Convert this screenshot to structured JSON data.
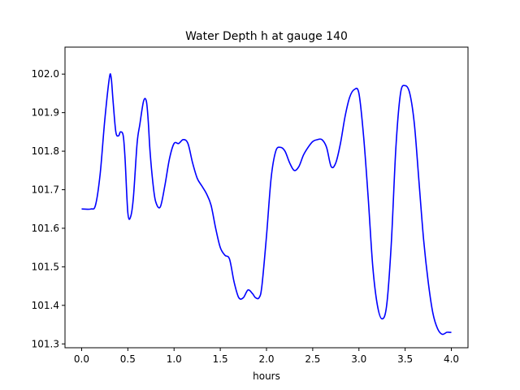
{
  "chart_data": {
    "type": "line",
    "title": "Water Depth h at gauge 140",
    "xlabel": "hours",
    "ylabel": "",
    "xlim": [
      -0.18,
      4.18
    ],
    "ylim": [
      101.29,
      102.07
    ],
    "xticks": [
      0.0,
      0.5,
      1.0,
      1.5,
      2.0,
      2.5,
      3.0,
      3.5,
      4.0
    ],
    "xtick_labels": [
      "0.0",
      "0.5",
      "1.0",
      "1.5",
      "2.0",
      "2.5",
      "3.0",
      "3.5",
      "4.0"
    ],
    "yticks": [
      101.3,
      101.4,
      101.5,
      101.6,
      101.7,
      101.8,
      101.9,
      102.0
    ],
    "ytick_labels": [
      "101.3",
      "101.4",
      "101.5",
      "101.6",
      "101.7",
      "101.8",
      "101.9",
      "102.0"
    ],
    "grid": false,
    "series": [
      {
        "name": "",
        "color": "#0000ff",
        "x": [
          0.0,
          0.1,
          0.15,
          0.2,
          0.25,
          0.3,
          0.32,
          0.34,
          0.37,
          0.4,
          0.42,
          0.45,
          0.47,
          0.5,
          0.53,
          0.56,
          0.6,
          0.63,
          0.67,
          0.7,
          0.72,
          0.74,
          0.77,
          0.8,
          0.85,
          0.9,
          0.95,
          1.0,
          1.05,
          1.1,
          1.15,
          1.2,
          1.25,
          1.3,
          1.35,
          1.4,
          1.45,
          1.5,
          1.55,
          1.6,
          1.65,
          1.7,
          1.75,
          1.8,
          1.85,
          1.88,
          1.92,
          1.95,
          2.0,
          2.05,
          2.1,
          2.15,
          2.2,
          2.25,
          2.3,
          2.35,
          2.4,
          2.45,
          2.5,
          2.55,
          2.6,
          2.65,
          2.7,
          2.75,
          2.8,
          2.85,
          2.9,
          2.95,
          3.0,
          3.05,
          3.1,
          3.15,
          3.2,
          3.25,
          3.3,
          3.35,
          3.4,
          3.45,
          3.5,
          3.55,
          3.6,
          3.65,
          3.7,
          3.75,
          3.8,
          3.85,
          3.9,
          3.95,
          3.98,
          4.0
        ],
        "y": [
          101.65,
          101.65,
          101.66,
          101.74,
          101.88,
          101.99,
          101.99,
          101.93,
          101.85,
          101.84,
          101.85,
          101.84,
          101.78,
          101.64,
          101.63,
          101.68,
          101.82,
          101.87,
          101.93,
          101.93,
          101.88,
          101.8,
          101.72,
          101.67,
          101.655,
          101.71,
          101.78,
          101.82,
          101.82,
          101.83,
          101.82,
          101.77,
          101.73,
          101.71,
          101.69,
          101.66,
          101.6,
          101.55,
          101.53,
          101.52,
          101.46,
          101.42,
          101.42,
          101.44,
          101.43,
          101.42,
          101.42,
          101.45,
          101.58,
          101.73,
          101.8,
          101.81,
          101.8,
          101.77,
          101.75,
          101.76,
          101.79,
          101.81,
          101.825,
          101.83,
          101.83,
          101.81,
          101.76,
          101.77,
          101.82,
          101.89,
          101.94,
          101.96,
          101.95,
          101.84,
          101.68,
          101.5,
          101.4,
          101.365,
          101.4,
          101.56,
          101.81,
          101.95,
          101.97,
          101.95,
          101.87,
          101.72,
          101.57,
          101.46,
          101.38,
          101.34,
          101.325,
          101.33,
          101.33,
          101.33
        ]
      }
    ]
  }
}
